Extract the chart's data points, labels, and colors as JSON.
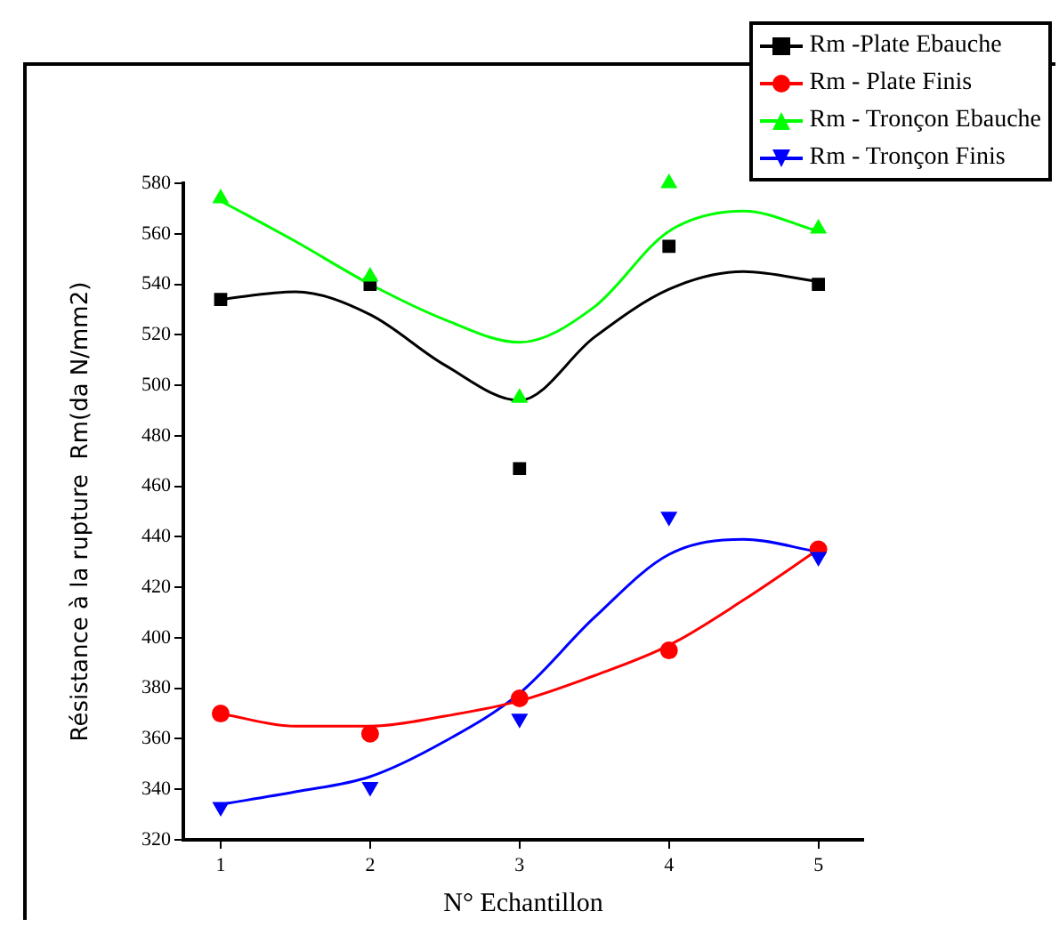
{
  "chart_data": {
    "type": "scatter",
    "xlabel": "N° Echantillon",
    "ylabel": "Résistance à la rupture  Rm(da N/mm2)",
    "x": [
      1,
      2,
      3,
      4,
      5
    ],
    "series": [
      {
        "name": "Rm -Plate Ebauche",
        "color": "#000000",
        "marker": "square",
        "values": [
          534,
          540,
          467,
          555,
          540
        ]
      },
      {
        "name": "Rm - Plate Finis",
        "color": "#ff0000",
        "marker": "circle",
        "values": [
          370,
          362,
          376,
          395,
          435
        ]
      },
      {
        "name": "Rm - Tronçon Ebauche",
        "color": "#00ff00",
        "marker": "triangle",
        "values": [
          574,
          543,
          495,
          580,
          562
        ]
      },
      {
        "name": "Rm - Tronçon Finis",
        "color": "#0000ff",
        "marker": "triangle-down",
        "values": [
          333,
          341,
          368,
          448,
          432
        ]
      },
      {
        "type": "line",
        "color": "#000000",
        "x": [
          1,
          1.5,
          2,
          2.5,
          3,
          3.5,
          4,
          4.5,
          5
        ],
        "values": [
          534,
          537,
          528,
          508,
          494,
          519,
          538,
          545,
          541
        ]
      },
      {
        "type": "line",
        "color": "#ff0000",
        "x": [
          1,
          1.5,
          2,
          2.5,
          3,
          3.5,
          4,
          4.5,
          5
        ],
        "values": [
          370,
          365,
          365,
          369,
          375,
          385,
          397,
          415,
          435
        ]
      },
      {
        "type": "line",
        "color": "#00ff00",
        "x": [
          1,
          1.5,
          2,
          2.5,
          3,
          3.5,
          4,
          4.5,
          5
        ],
        "values": [
          573,
          557,
          540,
          526,
          517,
          531,
          561,
          569,
          561
        ]
      },
      {
        "type": "line",
        "color": "#0000ff",
        "x": [
          1,
          1.5,
          2,
          2.5,
          3,
          3.5,
          4,
          4.5,
          5
        ],
        "values": [
          334,
          339,
          345,
          359,
          378,
          408,
          433,
          439,
          434
        ]
      }
    ],
    "xlim": [
      0.75,
      5.3
    ],
    "xticks": [
      1,
      2,
      3,
      4,
      5
    ],
    "ylim": [
      320,
      580
    ],
    "yticks": [
      320,
      340,
      360,
      380,
      400,
      420,
      440,
      460,
      480,
      500,
      520,
      540,
      560,
      580
    ],
    "grid": false,
    "legend": "top right",
    "line_style": "solid"
  }
}
